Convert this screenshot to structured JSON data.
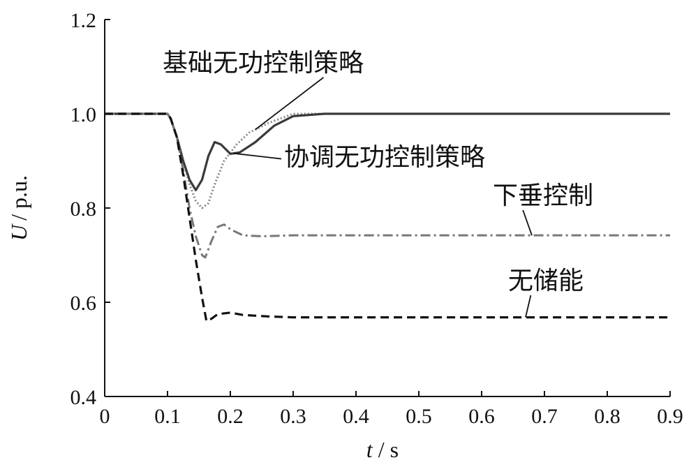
{
  "chart_data": {
    "type": "line",
    "title": "",
    "xlabel_var": "t",
    "xlabel_unit": "/ s",
    "ylabel_var": "U",
    "ylabel_unit": "/ p.u.",
    "xlim": [
      0,
      0.9
    ],
    "ylim": [
      0.4,
      1.2
    ],
    "xticks": [
      "0",
      "0.1",
      "0.2",
      "0.3",
      "0.4",
      "0.5",
      "0.6",
      "0.7",
      "0.8",
      "0.9"
    ],
    "yticks": [
      "0.4",
      "0.6",
      "0.8",
      "1.0",
      "1.2"
    ],
    "grid": false,
    "legend": "none",
    "series": [
      {
        "name": "基础无功控制策略",
        "color": "#888888",
        "dash": "dotted",
        "points": [
          [
            0,
            1.0
          ],
          [
            0.1,
            1.0
          ],
          [
            0.105,
            0.99
          ],
          [
            0.115,
            0.95
          ],
          [
            0.125,
            0.9
          ],
          [
            0.135,
            0.85
          ],
          [
            0.145,
            0.815
          ],
          [
            0.155,
            0.8
          ],
          [
            0.165,
            0.81
          ],
          [
            0.175,
            0.85
          ],
          [
            0.19,
            0.9
          ],
          [
            0.21,
            0.935
          ],
          [
            0.23,
            0.96
          ],
          [
            0.26,
            0.98
          ],
          [
            0.3,
            1.0
          ],
          [
            0.35,
            1.0
          ],
          [
            0.5,
            1.0
          ],
          [
            0.7,
            1.0
          ],
          [
            0.9,
            1.0
          ]
        ]
      },
      {
        "name": "协调无功控制策略",
        "color": "#3a3a3a",
        "dash": "solid",
        "points": [
          [
            0,
            1.0
          ],
          [
            0.1,
            1.0
          ],
          [
            0.105,
            0.99
          ],
          [
            0.115,
            0.95
          ],
          [
            0.125,
            0.9
          ],
          [
            0.135,
            0.86
          ],
          [
            0.145,
            0.838
          ],
          [
            0.155,
            0.86
          ],
          [
            0.165,
            0.91
          ],
          [
            0.175,
            0.94
          ],
          [
            0.185,
            0.935
          ],
          [
            0.2,
            0.915
          ],
          [
            0.215,
            0.918
          ],
          [
            0.24,
            0.94
          ],
          [
            0.27,
            0.975
          ],
          [
            0.3,
            0.995
          ],
          [
            0.35,
            1.0
          ],
          [
            0.5,
            1.0
          ],
          [
            0.7,
            1.0
          ],
          [
            0.9,
            1.0
          ]
        ]
      },
      {
        "name": "下垂控制",
        "color": "#777777",
        "dash": "dashdot",
        "points": [
          [
            0,
            1.0
          ],
          [
            0.1,
            1.0
          ],
          [
            0.105,
            0.99
          ],
          [
            0.115,
            0.95
          ],
          [
            0.125,
            0.88
          ],
          [
            0.135,
            0.8
          ],
          [
            0.145,
            0.74
          ],
          [
            0.155,
            0.7
          ],
          [
            0.16,
            0.695
          ],
          [
            0.17,
            0.73
          ],
          [
            0.18,
            0.76
          ],
          [
            0.19,
            0.765
          ],
          [
            0.2,
            0.755
          ],
          [
            0.22,
            0.742
          ],
          [
            0.25,
            0.74
          ],
          [
            0.3,
            0.742
          ],
          [
            0.5,
            0.742
          ],
          [
            0.7,
            0.742
          ],
          [
            0.9,
            0.742
          ]
        ]
      },
      {
        "name": "无储能",
        "color": "#111111",
        "dash": "dashed",
        "points": [
          [
            0,
            1.0
          ],
          [
            0.1,
            1.0
          ],
          [
            0.105,
            0.99
          ],
          [
            0.115,
            0.95
          ],
          [
            0.125,
            0.87
          ],
          [
            0.135,
            0.78
          ],
          [
            0.145,
            0.69
          ],
          [
            0.155,
            0.61
          ],
          [
            0.162,
            0.56
          ],
          [
            0.17,
            0.565
          ],
          [
            0.18,
            0.575
          ],
          [
            0.2,
            0.578
          ],
          [
            0.22,
            0.573
          ],
          [
            0.26,
            0.57
          ],
          [
            0.3,
            0.568
          ],
          [
            0.5,
            0.568
          ],
          [
            0.7,
            0.568
          ],
          [
            0.9,
            0.568
          ]
        ]
      }
    ],
    "annotations": [
      {
        "text": "基础无功控制策略",
        "series": 0,
        "point_x": 0.24
      },
      {
        "text": "协调无功控制策略",
        "series": 1,
        "point_x": 0.205
      },
      {
        "text": "下垂控制",
        "series": 2,
        "point_x": 0.68
      },
      {
        "text": "无储能",
        "series": 3,
        "point_x": 0.67
      }
    ]
  }
}
